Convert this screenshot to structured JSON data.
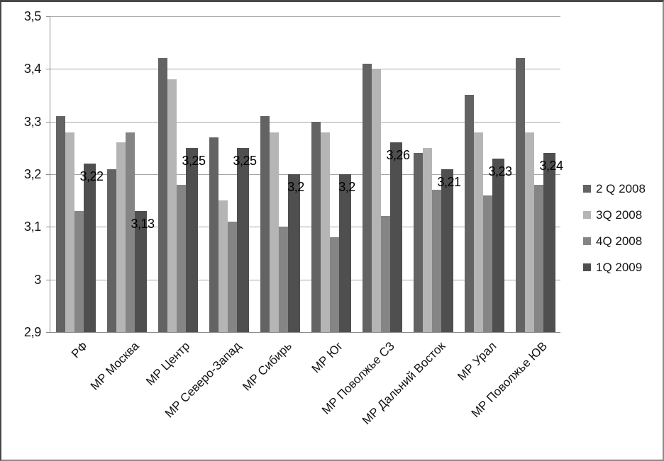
{
  "chart_data": {
    "type": "bar",
    "title": "",
    "xlabel": "",
    "ylabel": "",
    "decimal_separator": ",",
    "grid": true,
    "legend_position": "right",
    "categories": [
      "РФ",
      "МР Москва",
      "МР Центр",
      "МР Северо-Запад",
      "МР Сибирь",
      "МР Юг",
      "МР Поволжье СЗ",
      "МР Дальний Восток",
      "МР Урал",
      "МР Поволжье ЮВ"
    ],
    "series": [
      {
        "name": "2 Q 2008",
        "color": "#636363",
        "values": [
          3.31,
          3.21,
          3.42,
          3.27,
          3.31,
          3.3,
          3.41,
          3.24,
          3.35,
          3.42
        ]
      },
      {
        "name": "3Q 2008",
        "color": "#b5b5b5",
        "values": [
          3.28,
          3.26,
          3.38,
          3.15,
          3.28,
          3.28,
          3.4,
          3.25,
          3.28,
          3.28
        ]
      },
      {
        "name": "4Q 2008",
        "color": "#858585",
        "values": [
          3.13,
          3.28,
          3.18,
          3.11,
          3.1,
          3.08,
          3.12,
          3.17,
          3.16,
          3.18
        ]
      },
      {
        "name": "1Q 2009",
        "color": "#4f4f4f",
        "values": [
          3.22,
          3.13,
          3.25,
          3.25,
          3.2,
          3.2,
          3.26,
          3.21,
          3.23,
          3.24
        ],
        "data_labels": [
          "3,22",
          "3,13",
          "3,25",
          "3,25",
          "3,2",
          "3,2",
          "3,26",
          "3,21",
          "3,23",
          "3,24"
        ]
      }
    ],
    "y_axis": {
      "min": 2.9,
      "max": 3.5,
      "step": 0.1,
      "tick_labels": [
        "3,5",
        "3,4",
        "3,3",
        "3,2",
        "3,1",
        "3",
        "2,9"
      ]
    },
    "colors": {
      "gridline": "#a6a6a6",
      "axis": "#8c8c8c",
      "text": "#141414",
      "background": "#ffffff"
    }
  }
}
